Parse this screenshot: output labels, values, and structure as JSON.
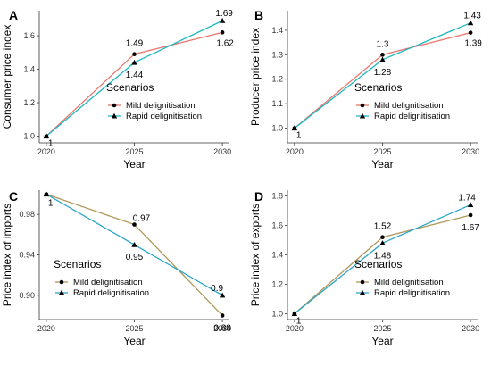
{
  "colors": {
    "mild": "#e8766d",
    "rapid": "#1fb8c3",
    "axis": "#333333",
    "marker": "#000000"
  },
  "chart_data": [
    {
      "type": "line",
      "panel_label": "A",
      "xlabel": "Year",
      "ylabel": "Consumer price index",
      "x": [
        2020,
        2025,
        2030
      ],
      "xlim": [
        2019.6,
        2030.4
      ],
      "ylim": [
        0.96,
        1.75
      ],
      "yticks": [
        1.0,
        1.2,
        1.4,
        1.6
      ],
      "ytick_labels": [
        "1.0",
        "1.2",
        "1.4",
        "1.6"
      ],
      "legend_title": "Scenarios",
      "legend_position": "bottom-right",
      "series": [
        {
          "name": "Mild delignitisation",
          "values": [
            1,
            1.49,
            1.62
          ],
          "labels": [
            "",
            "1.49",
            "1.62"
          ],
          "marker": "circle",
          "color": "#e8766d"
        },
        {
          "name": "Rapid delignitisation",
          "values": [
            1,
            1.44,
            1.69
          ],
          "labels": [
            "1",
            "1.44",
            "1.69"
          ],
          "marker": "triangle",
          "color": "#1fb8c3"
        }
      ]
    },
    {
      "type": "line",
      "panel_label": "B",
      "xlabel": "Year",
      "ylabel": "Producer price index",
      "x": [
        2020,
        2025,
        2030
      ],
      "xlim": [
        2019.6,
        2030.4
      ],
      "ylim": [
        0.94,
        1.48
      ],
      "yticks": [
        1.0,
        1.1,
        1.2,
        1.3,
        1.4
      ],
      "ytick_labels": [
        "1.0",
        "1.1",
        "1.2",
        "1.3",
        "1.4"
      ],
      "legend_title": "Scenarios",
      "legend_position": "bottom-right",
      "series": [
        {
          "name": "Mild delignitisation",
          "values": [
            1,
            1.3,
            1.39
          ],
          "labels": [
            "",
            "1.3",
            "1.39"
          ],
          "marker": "circle",
          "color": "#e8766d"
        },
        {
          "name": "Rapid delignitisation",
          "values": [
            1,
            1.28,
            1.43
          ],
          "labels": [
            "1",
            "1.28",
            "1.43"
          ],
          "marker": "triangle",
          "color": "#1fb8c3"
        }
      ]
    },
    {
      "type": "line",
      "panel_label": "C",
      "xlabel": "Year",
      "ylabel": "Price index of imports",
      "x": [
        2020,
        2025,
        2030
      ],
      "xlim": [
        2019.6,
        2030.4
      ],
      "ylim": [
        0.876,
        1.004
      ],
      "yticks": [
        0.9,
        0.94,
        0.98
      ],
      "ytick_labels": [
        "0.90",
        "0.94",
        "0.98"
      ],
      "legend_title": "Scenarios",
      "legend_position": "bottom-left",
      "series": [
        {
          "name": "Mild delignitisation",
          "values": [
            1,
            0.97,
            0.88
          ],
          "labels": [
            "",
            "0.97",
            "0.88"
          ],
          "marker": "circle",
          "color": "#b0985a"
        },
        {
          "name": "Rapid delignitisation",
          "values": [
            1,
            0.95,
            0.9
          ],
          "labels": [
            "1",
            "0.95",
            "0.9"
          ],
          "marker": "triangle",
          "color": "#2ea6c9"
        }
      ]
    },
    {
      "type": "line",
      "panel_label": "D",
      "xlabel": "Year",
      "ylabel": "Price index of exports",
      "x": [
        2020,
        2025,
        2030
      ],
      "xlim": [
        2019.6,
        2030.4
      ],
      "ylim": [
        0.96,
        1.84
      ],
      "yticks": [
        1.0,
        1.2,
        1.4,
        1.6,
        1.8
      ],
      "ytick_labels": [
        "1.0",
        "1.2",
        "1.4",
        "1.6",
        "1.8"
      ],
      "legend_title": "Scenarios",
      "legend_position": "bottom-right",
      "series": [
        {
          "name": "Mild delignitisation",
          "values": [
            1,
            1.52,
            1.67
          ],
          "labels": [
            "",
            "1.52",
            "1.67"
          ],
          "marker": "circle",
          "color": "#b0985a"
        },
        {
          "name": "Rapid delignitisation",
          "values": [
            1,
            1.48,
            1.74
          ],
          "labels": [
            "1",
            "1.48",
            "1.74"
          ],
          "marker": "triangle",
          "color": "#2ea6c9"
        }
      ]
    }
  ]
}
